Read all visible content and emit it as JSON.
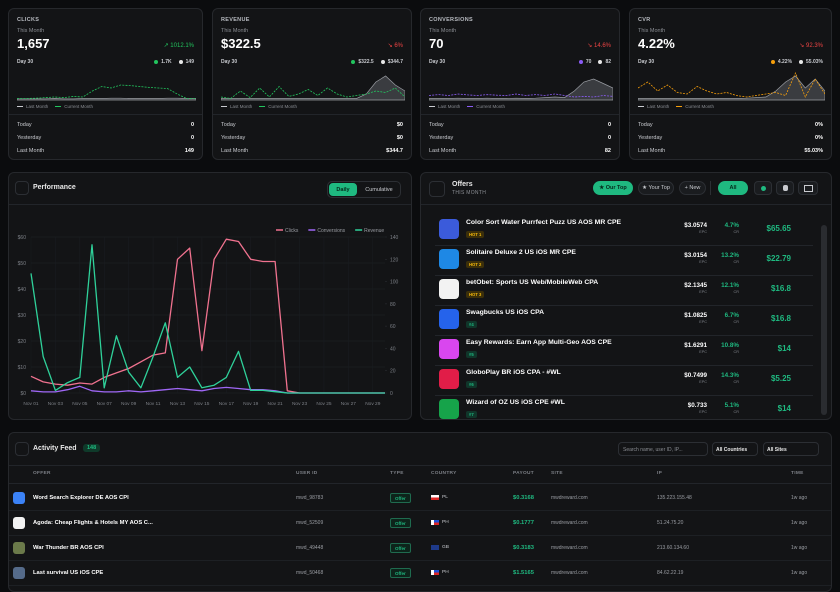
{
  "cards": [
    {
      "label": "CLICKS",
      "period": "This Month",
      "value": "1,657",
      "change": "↗ 1012.1%",
      "change_color": "#22c55e",
      "day": "Day 30",
      "current_label": "1.7K",
      "last_label": "149",
      "color": "#22c55e",
      "legend": [
        "Last Month",
        "Current Month"
      ],
      "sparkline": {
        "ylim": [
          0,
          100
        ],
        "last": [
          4,
          4,
          4,
          4,
          5,
          4,
          4,
          5,
          5,
          5,
          6,
          6,
          5,
          5,
          5,
          5,
          6,
          6,
          5,
          5
        ],
        "current": [
          5,
          5,
          6,
          8,
          10,
          8,
          12,
          10,
          30,
          45,
          40,
          50,
          48,
          45,
          42,
          40,
          38,
          20,
          5,
          5
        ]
      },
      "rows": [
        {
          "label": "Today",
          "value": "0"
        },
        {
          "label": "Yesterday",
          "value": "0"
        },
        {
          "label": "Last Month",
          "value": "149"
        }
      ]
    },
    {
      "label": "REVENUE",
      "period": "This Month",
      "value": "$322.5",
      "change": "↘ 6%",
      "change_color": "#ef4444",
      "day": "Day 30",
      "current_label": "$322.5",
      "last_label": "$344.7",
      "color": "#22c55e",
      "legend": [
        "Last Month",
        "Current Month"
      ],
      "sparkline": {
        "ylim": [
          0,
          100
        ],
        "last": [
          5,
          5,
          5,
          5,
          5,
          5,
          5,
          5,
          5,
          5,
          5,
          5,
          5,
          5,
          5,
          20,
          60,
          80,
          50,
          30
        ],
        "current": [
          10,
          5,
          30,
          8,
          40,
          10,
          45,
          12,
          20,
          35,
          15,
          40,
          20,
          10,
          15,
          20,
          30,
          25,
          40,
          10
        ]
      },
      "rows": [
        {
          "label": "Today",
          "value": "$0"
        },
        {
          "label": "Yesterday",
          "value": "$0"
        },
        {
          "label": "Last Month",
          "value": "$344.7"
        }
      ]
    },
    {
      "label": "CONVERSIONS",
      "period": "This Month",
      "value": "70",
      "change": "↘ 14.6%",
      "change_color": "#ef4444",
      "day": "Day 30",
      "current_label": "70",
      "last_label": "82",
      "color": "#8b5cf6",
      "legend": [
        "Last Month",
        "Current Month"
      ],
      "sparkline": {
        "ylim": [
          0,
          100
        ],
        "last": [
          5,
          5,
          5,
          6,
          5,
          5,
          6,
          5,
          5,
          6,
          5,
          6,
          8,
          10,
          8,
          30,
          60,
          70,
          55,
          40
        ],
        "current": [
          15,
          18,
          15,
          20,
          17,
          15,
          18,
          16,
          15,
          20,
          15,
          18,
          15,
          20,
          15,
          10,
          12,
          10,
          15,
          12
        ]
      },
      "rows": [
        {
          "label": "Today",
          "value": "0"
        },
        {
          "label": "Yesterday",
          "value": "0"
        },
        {
          "label": "Last Month",
          "value": "82"
        }
      ]
    },
    {
      "label": "CVR",
      "period": "This Month",
      "value": "4.22%",
      "change": "↘ 92.3%",
      "change_color": "#ef4444",
      "day": "Day 30",
      "current_label": "4.22%",
      "last_label": "55.03%",
      "color": "#f59e0b",
      "legend": [
        "Last Month",
        "Current Month"
      ],
      "sparkline": {
        "ylim": [
          0,
          100
        ],
        "last": [
          5,
          5,
          5,
          5,
          5,
          5,
          5,
          5,
          5,
          5,
          5,
          6,
          8,
          10,
          30,
          60,
          80,
          40,
          70,
          30
        ],
        "current": [
          40,
          60,
          30,
          50,
          25,
          20,
          45,
          30,
          20,
          25,
          15,
          10,
          15,
          20,
          25,
          15,
          90,
          10,
          70,
          20
        ]
      },
      "rows": [
        {
          "label": "Today",
          "value": "0%"
        },
        {
          "label": "Yesterday",
          "value": "0%"
        },
        {
          "label": "Last Month",
          "value": "55.03%"
        }
      ]
    }
  ],
  "chart_data": {
    "type": "line",
    "title": "Performance",
    "categories": [
      "Nov 01",
      null,
      "Nov 03",
      null,
      "Nov 05",
      null,
      "Nov 07",
      null,
      "Nov 09",
      null,
      "Nov 11",
      null,
      "Nov 13",
      null,
      "Nov 15",
      null,
      "Nov 17",
      null,
      "Nov 19",
      null,
      "Nov 21",
      null,
      "Nov 23",
      null,
      "Nov 25",
      null,
      "Nov 27",
      null,
      "Nov 29",
      null
    ],
    "ylim": [
      0,
      60
    ],
    "yticks": [
      {
        "value": 0,
        "label": "$0"
      },
      {
        "value": 10,
        "label": "$10"
      },
      {
        "value": 20,
        "label": "$20"
      },
      {
        "value": 30,
        "label": "$30"
      },
      {
        "value": 40,
        "label": "$40"
      },
      {
        "value": 50,
        "label": "$50"
      },
      {
        "value": 60,
        "label": "$60"
      }
    ],
    "y2lim": [
      0,
      140
    ],
    "y2ticks": [
      0,
      20,
      40,
      60,
      80,
      100,
      120,
      140
    ],
    "grid": true,
    "legend": "top-right",
    "series": [
      {
        "name": "Clicks",
        "color": "#f0728f",
        "axis": "y2",
        "values": [
          15,
          10,
          8,
          7,
          9,
          8,
          14,
          18,
          22,
          28,
          34,
          36,
          120,
          130,
          38,
          120,
          138,
          136,
          120,
          118,
          118,
          2,
          0,
          0,
          0,
          0,
          0,
          0,
          0,
          0
        ]
      },
      {
        "name": "Conversions",
        "color": "#9f67f5",
        "axis": "y2",
        "values": [
          2,
          1,
          1,
          3,
          6,
          2,
          1,
          1,
          2,
          1,
          2,
          3,
          4,
          3,
          2,
          4,
          5,
          4,
          3,
          3,
          2,
          0,
          0,
          0,
          0,
          0,
          0,
          0,
          0,
          0
        ]
      },
      {
        "name": "Revenue",
        "color": "#2fd19a",
        "values": [
          46,
          14,
          1,
          4,
          6,
          57,
          2,
          22,
          8,
          2,
          14,
          27,
          6,
          10,
          2,
          3,
          6,
          16,
          1,
          1,
          0.5,
          0,
          0,
          0,
          0,
          0,
          0,
          0,
          0,
          0
        ]
      }
    ]
  },
  "performance_toggle": [
    "Daily",
    "Cumulative"
  ],
  "offers": {
    "title": "Offers",
    "subtitle": "THIS MONTH",
    "tabs": [
      "★ Our Top",
      "★ Your Top",
      "+ New"
    ],
    "filter": "All",
    "epc_label": "EPC",
    "cr_label": "CR",
    "rows": [
      {
        "name": "Color Sort Water Purrfect Puzz US AOS MR CPE",
        "badge": "HOT 1",
        "epc": "$3.0574",
        "cr": "4.7%",
        "total": "$65.65"
      },
      {
        "name": "Solitaire Deluxe 2 US iOS MR CPE",
        "badge": "HOT 2",
        "epc": "$3.0154",
        "cr": "13.2%",
        "total": "$22.79"
      },
      {
        "name": "betObet: Sports US Web/MobileWeb CPA",
        "badge": "HOT 3",
        "epc": "$2.1345",
        "cr": "12.1%",
        "total": "$16.8"
      },
      {
        "name": "Swagbucks US iOS CPA",
        "badge": "#4",
        "epc": "$1.0825",
        "cr": "6.7%",
        "total": "$16.8"
      },
      {
        "name": "Easy Rewards: Earn App Multi-Geo AOS CPE",
        "badge": "#5",
        "epc": "$1.6291",
        "cr": "10.8%",
        "total": "$14"
      },
      {
        "name": "GloboPlay BR iOS CPA - #WL",
        "badge": "#6",
        "epc": "$0.7499",
        "cr": "14.3%",
        "total": "$5.25"
      },
      {
        "name": "Wizard of OZ US iOS CPE #WL",
        "badge": "#7",
        "epc": "$0.733",
        "cr": "5.1%",
        "total": "$14"
      }
    ]
  },
  "activity": {
    "title": "Activity Feed",
    "count": "148",
    "search": "Search name, user ID, IP...",
    "countries": "All Countries",
    "sites": "All Sites",
    "columns": [
      "OFFER",
      "USER ID",
      "TYPE",
      "COUNTRY",
      "PAYOUT",
      "SITE",
      "IP",
      "TIME"
    ],
    "rows": [
      [
        "Word Search Explorer DE AOS CPI",
        "mwd_98783",
        "Offer",
        "PL",
        "$0.3168",
        "mwdreward.com",
        "135.223.155.48",
        "1w ago"
      ],
      [
        "Agoda: Cheap Flights & Hotels MY AOS C...",
        "mwd_52509",
        "Offer",
        "PH",
        "$0.1777",
        "mwdreward.com",
        "51.24.75.20",
        "1w ago"
      ],
      [
        "War Thunder BR AOS CPI",
        "mwd_49448",
        "Offer",
        "GB",
        "$0.3183",
        "mwdreward.com",
        "213.60.134.60",
        "1w ago"
      ],
      [
        "Last survival US iOS CPE",
        "mwd_50468",
        "Offer",
        "PH",
        "$1.5165",
        "mwdreward.com",
        "84.62.22.19",
        "1w ago"
      ]
    ]
  }
}
